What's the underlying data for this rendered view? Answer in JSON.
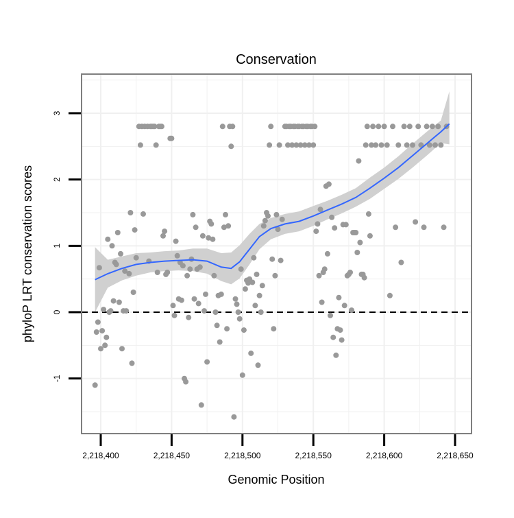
{
  "chart_data": {
    "type": "scatter",
    "title": "Conservation",
    "xlabel": "Genomic Position",
    "ylabel": "phyloP LRT conservation scores",
    "xlim": [
      2218393,
      2218651
    ],
    "ylim": [
      -1.8,
      3.6
    ],
    "x_ticks": [
      2218400,
      2218450,
      2218500,
      2218550,
      2218600,
      2218650
    ],
    "x_tick_labels": [
      "2,218,400",
      "2,218,450",
      "2,218,500",
      "2,218,550",
      "2,218,600",
      "2,218,650"
    ],
    "y_ticks": [
      -1,
      0,
      1,
      2,
      3
    ],
    "y_tick_labels": [
      "-1",
      "0",
      "1",
      "2",
      "3"
    ],
    "grid": true,
    "reference_line": {
      "y": 0,
      "style": "dashed",
      "color": "#000000"
    },
    "colors": {
      "points": "#999999",
      "smooth": "#3366ff",
      "ribbon": "#d0d0d0",
      "panel_border": "#7f7f7f",
      "grid": "#f0f0f0"
    },
    "points": [
      [
        2218396,
        -1.1
      ],
      [
        2218397,
        -0.3
      ],
      [
        2218398,
        -0.15
      ],
      [
        2218399,
        0.67
      ],
      [
        2218400,
        -0.55
      ],
      [
        2218401,
        -0.28
      ],
      [
        2218402,
        0.04
      ],
      [
        2218403,
        -0.5
      ],
      [
        2218404,
        -0.38
      ],
      [
        2218405,
        1.1
      ],
      [
        2218406,
        0.0
      ],
      [
        2218407,
        0.02
      ],
      [
        2218408,
        1.0
      ],
      [
        2218409,
        0.17
      ],
      [
        2218410,
        0.75
      ],
      [
        2218411,
        0.72
      ],
      [
        2218412,
        1.2
      ],
      [
        2218413,
        0.15
      ],
      [
        2218414,
        0.88
      ],
      [
        2218415,
        -0.55
      ],
      [
        2218416,
        0.02
      ],
      [
        2218417,
        0.62
      ],
      [
        2218418,
        0.02
      ],
      [
        2218420,
        0.58
      ],
      [
        2218421,
        1.5
      ],
      [
        2218422,
        -0.77
      ],
      [
        2218423,
        0.3
      ],
      [
        2218424,
        1.24
      ],
      [
        2218425,
        0.82
      ],
      [
        2218427,
        2.8
      ],
      [
        2218428,
        2.52
      ],
      [
        2218429,
        2.8
      ],
      [
        2218430,
        1.48
      ],
      [
        2218431,
        2.8
      ],
      [
        2218433,
        2.8
      ],
      [
        2218434,
        0.77
      ],
      [
        2218435,
        2.8
      ],
      [
        2218436,
        2.8
      ],
      [
        2218437,
        2.8
      ],
      [
        2218438,
        2.8
      ],
      [
        2218439,
        2.52
      ],
      [
        2218440,
        0.6
      ],
      [
        2218441,
        2.8
      ],
      [
        2218442,
        2.8
      ],
      [
        2218443,
        2.8
      ],
      [
        2218444,
        1.15
      ],
      [
        2218445,
        1.22
      ],
      [
        2218446,
        0.57
      ],
      [
        2218447,
        0.6
      ],
      [
        2218449,
        2.62
      ],
      [
        2218450,
        2.62
      ],
      [
        2218451,
        0.1
      ],
      [
        2218452,
        -0.05
      ],
      [
        2218453,
        1.07
      ],
      [
        2218454,
        0.85
      ],
      [
        2218455,
        0.2
      ],
      [
        2218456,
        0.75
      ],
      [
        2218457,
        0.18
      ],
      [
        2218458,
        0.7
      ],
      [
        2218459,
        -1.0
      ],
      [
        2218460,
        -1.05
      ],
      [
        2218461,
        0.55
      ],
      [
        2218462,
        -0.08
      ],
      [
        2218463,
        0.65
      ],
      [
        2218464,
        0.8
      ],
      [
        2218465,
        1.47
      ],
      [
        2218466,
        0.2
      ],
      [
        2218467,
        1.28
      ],
      [
        2218468,
        0.65
      ],
      [
        2218469,
        0.13
      ],
      [
        2218470,
        0.68
      ],
      [
        2218471,
        -1.4
      ],
      [
        2218472,
        1.15
      ],
      [
        2218473,
        0.02
      ],
      [
        2218474,
        0.27
      ],
      [
        2218475,
        -0.75
      ],
      [
        2218476,
        1.12
      ],
      [
        2218477,
        1.37
      ],
      [
        2218478,
        1.33
      ],
      [
        2218479,
        1.1
      ],
      [
        2218480,
        0.55
      ],
      [
        2218481,
        0.0
      ],
      [
        2218482,
        -0.2
      ],
      [
        2218483,
        0.25
      ],
      [
        2218484,
        -0.45
      ],
      [
        2218485,
        0.27
      ],
      [
        2218486,
        2.8
      ],
      [
        2218487,
        1.28
      ],
      [
        2218488,
        1.47
      ],
      [
        2218489,
        -0.25
      ],
      [
        2218490,
        1.3
      ],
      [
        2218491,
        2.8
      ],
      [
        2218492,
        2.5
      ],
      [
        2218493,
        2.8
      ],
      [
        2218494,
        -1.58
      ],
      [
        2218495,
        0.2
      ],
      [
        2218496,
        0.12
      ],
      [
        2218497,
        0.0
      ],
      [
        2218498,
        -0.1
      ],
      [
        2218499,
        0.65
      ],
      [
        2218500,
        -0.95
      ],
      [
        2218501,
        -0.27
      ],
      [
        2218502,
        0.35
      ],
      [
        2218503,
        0.48
      ],
      [
        2218504,
        0.44
      ],
      [
        2218505,
        0.5
      ],
      [
        2218506,
        -0.62
      ],
      [
        2218507,
        0.45
      ],
      [
        2218508,
        0.82
      ],
      [
        2218509,
        0.1
      ],
      [
        2218510,
        0.57
      ],
      [
        2218511,
        -0.8
      ],
      [
        2218512,
        0.25
      ],
      [
        2218513,
        0.0
      ],
      [
        2218514,
        0.4
      ],
      [
        2218515,
        1.3
      ],
      [
        2218516,
        1.38
      ],
      [
        2218517,
        1.5
      ],
      [
        2218518,
        1.45
      ],
      [
        2218519,
        2.52
      ],
      [
        2218520,
        2.8
      ],
      [
        2218521,
        0.8
      ],
      [
        2218522,
        -0.25
      ],
      [
        2218523,
        0.55
      ],
      [
        2218524,
        1.47
      ],
      [
        2218525,
        1.25
      ],
      [
        2218526,
        2.52
      ],
      [
        2218527,
        0.78
      ],
      [
        2218528,
        1.4
      ],
      [
        2218530,
        2.8
      ],
      [
        2218531,
        2.8
      ],
      [
        2218532,
        2.52
      ],
      [
        2218533,
        2.8
      ],
      [
        2218534,
        2.8
      ],
      [
        2218535,
        2.52
      ],
      [
        2218536,
        2.8
      ],
      [
        2218537,
        2.8
      ],
      [
        2218538,
        2.52
      ],
      [
        2218539,
        2.8
      ],
      [
        2218540,
        2.8
      ],
      [
        2218541,
        2.52
      ],
      [
        2218542,
        2.8
      ],
      [
        2218543,
        2.8
      ],
      [
        2218544,
        2.52
      ],
      [
        2218545,
        2.8
      ],
      [
        2218546,
        2.8
      ],
      [
        2218547,
        2.52
      ],
      [
        2218548,
        2.8
      ],
      [
        2218549,
        2.8
      ],
      [
        2218550,
        2.52
      ],
      [
        2218551,
        2.8
      ],
      [
        2218552,
        1.22
      ],
      [
        2218553,
        1.33
      ],
      [
        2218554,
        0.55
      ],
      [
        2218555,
        1.55
      ],
      [
        2218556,
        0.15
      ],
      [
        2218557,
        0.6
      ],
      [
        2218558,
        0.65
      ],
      [
        2218559,
        1.9
      ],
      [
        2218560,
        0.88
      ],
      [
        2218561,
        1.93
      ],
      [
        2218562,
        -0.05
      ],
      [
        2218563,
        1.43
      ],
      [
        2218564,
        -0.38
      ],
      [
        2218565,
        1.27
      ],
      [
        2218566,
        -0.65
      ],
      [
        2218567,
        -0.25
      ],
      [
        2218568,
        0.22
      ],
      [
        2218569,
        -0.27
      ],
      [
        2218570,
        -0.42
      ],
      [
        2218571,
        1.32
      ],
      [
        2218572,
        0.1
      ],
      [
        2218573,
        1.32
      ],
      [
        2218574,
        0.55
      ],
      [
        2218575,
        0.57
      ],
      [
        2218576,
        0.6
      ],
      [
        2218577,
        0.03
      ],
      [
        2218578,
        1.2
      ],
      [
        2218579,
        1.2
      ],
      [
        2218580,
        1.2
      ],
      [
        2218581,
        0.9
      ],
      [
        2218582,
        2.28
      ],
      [
        2218583,
        1.05
      ],
      [
        2218584,
        0.57
      ],
      [
        2218585,
        0.57
      ],
      [
        2218586,
        0.52
      ],
      [
        2218587,
        2.52
      ],
      [
        2218588,
        2.8
      ],
      [
        2218589,
        1.48
      ],
      [
        2218590,
        1.15
      ],
      [
        2218591,
        2.52
      ],
      [
        2218592,
        2.8
      ],
      [
        2218594,
        2.52
      ],
      [
        2218596,
        2.8
      ],
      [
        2218598,
        2.52
      ],
      [
        2218600,
        2.8
      ],
      [
        2218602,
        2.52
      ],
      [
        2218604,
        0.25
      ],
      [
        2218606,
        2.8
      ],
      [
        2218608,
        1.28
      ],
      [
        2218610,
        2.52
      ],
      [
        2218612,
        0.75
      ],
      [
        2218614,
        2.8
      ],
      [
        2218616,
        2.52
      ],
      [
        2218618,
        2.8
      ],
      [
        2218620,
        2.52
      ],
      [
        2218622,
        1.36
      ],
      [
        2218624,
        2.8
      ],
      [
        2218626,
        2.52
      ],
      [
        2218628,
        1.28
      ],
      [
        2218630,
        2.8
      ],
      [
        2218632,
        2.52
      ],
      [
        2218634,
        2.8
      ],
      [
        2218636,
        2.52
      ],
      [
        2218638,
        2.8
      ],
      [
        2218640,
        2.52
      ],
      [
        2218642,
        1.28
      ],
      [
        2218644,
        2.8
      ]
    ],
    "smooth_line": {
      "x": [
        2218396,
        2218405,
        2218415,
        2218425,
        2218435,
        2218445,
        2218455,
        2218465,
        2218475,
        2218485,
        2218492,
        2218498,
        2218505,
        2218512,
        2218520,
        2218530,
        2218540,
        2218550,
        2218560,
        2218570,
        2218580,
        2218590,
        2218600,
        2218610,
        2218620,
        2218630,
        2218640,
        2218646
      ],
      "y": [
        0.49,
        0.58,
        0.66,
        0.72,
        0.75,
        0.77,
        0.78,
        0.79,
        0.77,
        0.68,
        0.66,
        0.76,
        0.95,
        1.14,
        1.26,
        1.33,
        1.37,
        1.45,
        1.54,
        1.63,
        1.73,
        1.87,
        2.02,
        2.18,
        2.36,
        2.54,
        2.72,
        2.84
      ],
      "lower": [
        0.0,
        0.37,
        0.48,
        0.55,
        0.6,
        0.62,
        0.63,
        0.62,
        0.58,
        0.47,
        0.42,
        0.51,
        0.72,
        0.95,
        1.1,
        1.18,
        1.22,
        1.3,
        1.4,
        1.49,
        1.59,
        1.71,
        1.86,
        2.01,
        2.18,
        2.36,
        2.55,
        2.53
      ],
      "upper": [
        0.98,
        0.79,
        0.84,
        0.89,
        0.9,
        0.92,
        0.93,
        0.96,
        0.96,
        0.89,
        0.9,
        1.01,
        1.18,
        1.33,
        1.42,
        1.48,
        1.52,
        1.6,
        1.68,
        1.77,
        1.87,
        2.03,
        2.18,
        2.35,
        2.54,
        2.72,
        2.89,
        3.33
      ]
    }
  }
}
